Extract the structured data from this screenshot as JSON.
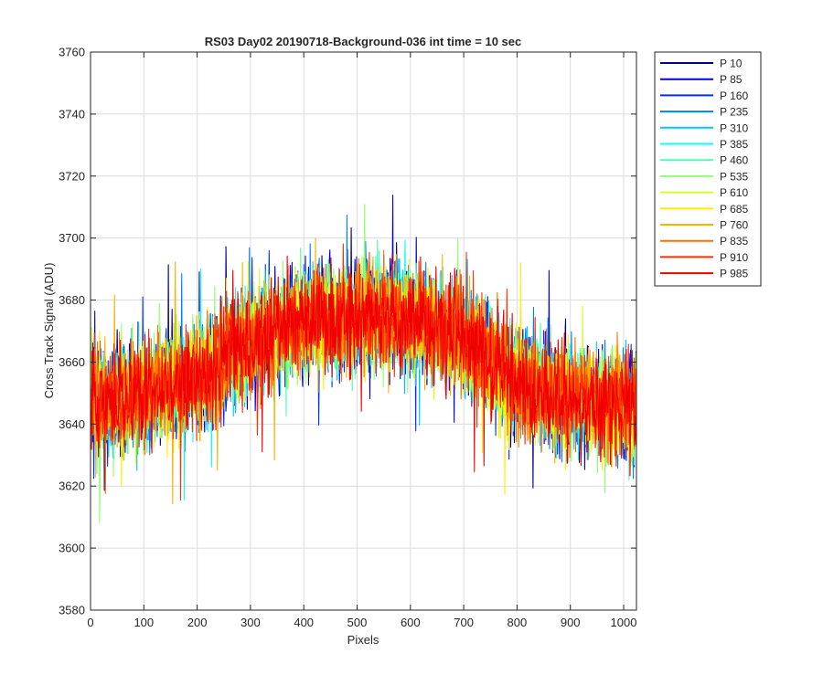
{
  "chart_data": {
    "type": "line",
    "title": "RS03 Day02 20190718-Background-036 int time = 10 sec",
    "xlabel": "Pixels",
    "ylabel": "Cross Track Signal (ADU)",
    "xlim": [
      0,
      1024
    ],
    "ylim": [
      3580,
      3760
    ],
    "xticks": [
      "0",
      "100",
      "200",
      "300",
      "400",
      "500",
      "600",
      "700",
      "800",
      "900",
      "1000"
    ],
    "yticks": [
      "3580",
      "3600",
      "3620",
      "3640",
      "3660",
      "3680",
      "3700",
      "3720",
      "3740",
      "3760"
    ],
    "grid": true,
    "legend_position": "outside-top-right",
    "x_points": 1024,
    "profile": {
      "x": [
        0,
        100,
        200,
        300,
        400,
        500,
        600,
        700,
        800,
        900,
        1024
      ],
      "mean": [
        3647,
        3649,
        3655,
        3667,
        3673,
        3675,
        3674,
        3668,
        3653,
        3648,
        3645
      ]
    },
    "noise_amplitude_adu": 15,
    "series": [
      {
        "name": "P 10",
        "color": "#00008F"
      },
      {
        "name": "P 85",
        "color": "#0000DF"
      },
      {
        "name": "P 160",
        "color": "#0030FF"
      },
      {
        "name": "P 235",
        "color": "#0080FF"
      },
      {
        "name": "P 310",
        "color": "#00C8FF"
      },
      {
        "name": "P 385",
        "color": "#10FFEF"
      },
      {
        "name": "P 460",
        "color": "#50FFAF"
      },
      {
        "name": "P 535",
        "color": "#90FF6F"
      },
      {
        "name": "P 610",
        "color": "#D0FF30"
      },
      {
        "name": "P 685",
        "color": "#FFF000"
      },
      {
        "name": "P 760",
        "color": "#FFB000"
      },
      {
        "name": "P 835",
        "color": "#FF7000"
      },
      {
        "name": "P 910",
        "color": "#FF3000"
      },
      {
        "name": "P 985",
        "color": "#F00000"
      }
    ]
  }
}
